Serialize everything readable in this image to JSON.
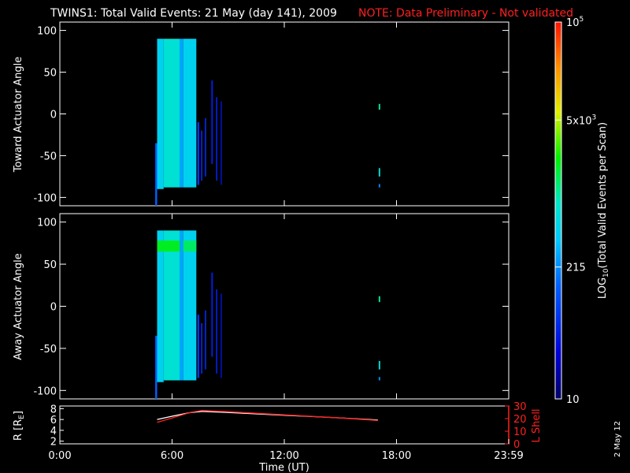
{
  "header": {
    "title": "TWINS1: Total Valid Events: 21 May (day 141), 2009",
    "note": "NOTE: Data Preliminary - Not validated"
  },
  "footer": {
    "date_stamp": "2 May 12"
  },
  "colors": {
    "frame": "#ffffff",
    "note": "#ff2020",
    "r_line": "#ffffff",
    "l_shell_line": "#ff2020"
  },
  "chart_data": [
    {
      "type": "heatmap",
      "panel": "toward",
      "ylabel": "Toward Actuator Angle",
      "ylim": [
        -110,
        110
      ],
      "yticks": [
        100,
        50,
        0,
        -50,
        -100
      ],
      "xlim": [
        0,
        24
      ],
      "strips": [
        {
          "t0": 5.2,
          "t1": 5.55,
          "a0": -90,
          "a1": 90,
          "level": 0.45
        },
        {
          "t0": 5.55,
          "t1": 6.4,
          "a0": -88,
          "a1": 90,
          "level": 0.5
        },
        {
          "t0": 6.4,
          "t1": 6.6,
          "a0": -88,
          "a1": 90,
          "level": 0.38
        },
        {
          "t0": 6.6,
          "t1": 7.3,
          "a0": -88,
          "a1": 90,
          "level": 0.45
        },
        {
          "t0": 5.1,
          "t1": 5.2,
          "a0": -110,
          "a1": -35,
          "level": 0.3
        },
        {
          "t0": 7.35,
          "t1": 7.45,
          "a0": -85,
          "a1": -10,
          "level": 0.22
        },
        {
          "t0": 7.55,
          "t1": 7.62,
          "a0": -80,
          "a1": -20,
          "level": 0.2
        },
        {
          "t0": 7.75,
          "t1": 7.82,
          "a0": -75,
          "a1": -5,
          "level": 0.2
        },
        {
          "t0": 8.1,
          "t1": 8.18,
          "a0": -60,
          "a1": 40,
          "level": 0.18
        },
        {
          "t0": 8.35,
          "t1": 8.42,
          "a0": -80,
          "a1": 20,
          "level": 0.18
        },
        {
          "t0": 8.6,
          "t1": 8.66,
          "a0": -85,
          "a1": 15,
          "level": 0.16
        },
        {
          "t0": 17.05,
          "t1": 17.13,
          "a0": 5,
          "a1": 12,
          "level": 0.55
        },
        {
          "t0": 17.05,
          "t1": 17.13,
          "a0": -75,
          "a1": -65,
          "level": 0.5
        },
        {
          "t0": 17.05,
          "t1": 17.13,
          "a0": -88,
          "a1": -84,
          "level": 0.35
        }
      ]
    },
    {
      "type": "heatmap",
      "panel": "away",
      "ylabel": "Away Actuator Angle",
      "ylim": [
        -110,
        110
      ],
      "yticks": [
        100,
        50,
        0,
        -50,
        -100
      ],
      "xlim": [
        0,
        24
      ],
      "strips": [
        {
          "t0": 5.2,
          "t1": 5.55,
          "a0": -90,
          "a1": 90,
          "level": 0.45
        },
        {
          "t0": 5.55,
          "t1": 6.4,
          "a0": -88,
          "a1": 90,
          "level": 0.5
        },
        {
          "t0": 5.2,
          "t1": 6.4,
          "a0": 65,
          "a1": 78,
          "level": 0.62
        },
        {
          "t0": 6.4,
          "t1": 6.6,
          "a0": -88,
          "a1": 90,
          "level": 0.38
        },
        {
          "t0": 6.6,
          "t1": 7.3,
          "a0": -88,
          "a1": 90,
          "level": 0.45
        },
        {
          "t0": 6.6,
          "t1": 7.3,
          "a0": 65,
          "a1": 78,
          "level": 0.58
        },
        {
          "t0": 5.1,
          "t1": 5.2,
          "a0": -110,
          "a1": -35,
          "level": 0.3
        },
        {
          "t0": 7.35,
          "t1": 7.45,
          "a0": -85,
          "a1": -10,
          "level": 0.22
        },
        {
          "t0": 7.55,
          "t1": 7.62,
          "a0": -80,
          "a1": -20,
          "level": 0.2
        },
        {
          "t0": 7.75,
          "t1": 7.82,
          "a0": -75,
          "a1": -5,
          "level": 0.2
        },
        {
          "t0": 8.1,
          "t1": 8.18,
          "a0": -60,
          "a1": 40,
          "level": 0.18
        },
        {
          "t0": 8.35,
          "t1": 8.42,
          "a0": -80,
          "a1": 20,
          "level": 0.18
        },
        {
          "t0": 8.6,
          "t1": 8.66,
          "a0": -85,
          "a1": 15,
          "level": 0.16
        },
        {
          "t0": 17.05,
          "t1": 17.13,
          "a0": 5,
          "a1": 12,
          "level": 0.55
        },
        {
          "t0": 17.05,
          "t1": 17.13,
          "a0": -75,
          "a1": -65,
          "level": 0.5
        },
        {
          "t0": 17.05,
          "t1": 17.13,
          "a0": -88,
          "a1": -84,
          "level": 0.35
        }
      ]
    },
    {
      "type": "line",
      "panel": "orbit",
      "xlabel": "Time (UT)",
      "xticks": [
        "0:00",
        "6:00",
        "12:00",
        "18:00",
        "23:59"
      ],
      "xtick_hours": [
        0,
        6,
        12,
        18,
        24
      ],
      "xlim": [
        0,
        24
      ],
      "ylabel_left": "R [R",
      "ylabel_left_sub": "E",
      "ylabel_left_end": "]",
      "ylim_left": [
        1.5,
        8.5
      ],
      "yticks_left": [
        8,
        6,
        4,
        2
      ],
      "ylabel_right": "L Shell",
      "ylim_right": [
        0,
        30
      ],
      "yticks_right": [
        30,
        20,
        10,
        0
      ],
      "series": [
        {
          "name": "R [RE]",
          "axis": "left",
          "x": [
            5.2,
            6.0,
            7.0,
            7.6,
            9.0,
            12.0,
            15.0,
            17.0
          ],
          "y": [
            6.0,
            6.6,
            7.3,
            7.5,
            7.3,
            6.8,
            6.3,
            5.9
          ]
        },
        {
          "name": "L Shell",
          "axis": "right",
          "x": [
            5.2,
            6.0,
            7.0,
            7.6,
            9.0,
            12.0,
            15.0,
            17.0
          ],
          "y": [
            17.0,
            20.5,
            25.0,
            26.5,
            25.5,
            23.0,
            20.5,
            18.5
          ]
        }
      ]
    }
  ],
  "colorbar": {
    "label": "LOG",
    "label_sub": "10",
    "label_end": "(Total Valid Events per Scan)",
    "tick_labels": [
      {
        "base": "10",
        "exp": "5",
        "level": 1.0
      },
      {
        "base": "5x10",
        "exp": "3",
        "level": 0.74
      },
      {
        "base": "215",
        "exp": "",
        "level": 0.35
      },
      {
        "base": "10",
        "exp": "",
        "level": 0.0
      }
    ]
  }
}
